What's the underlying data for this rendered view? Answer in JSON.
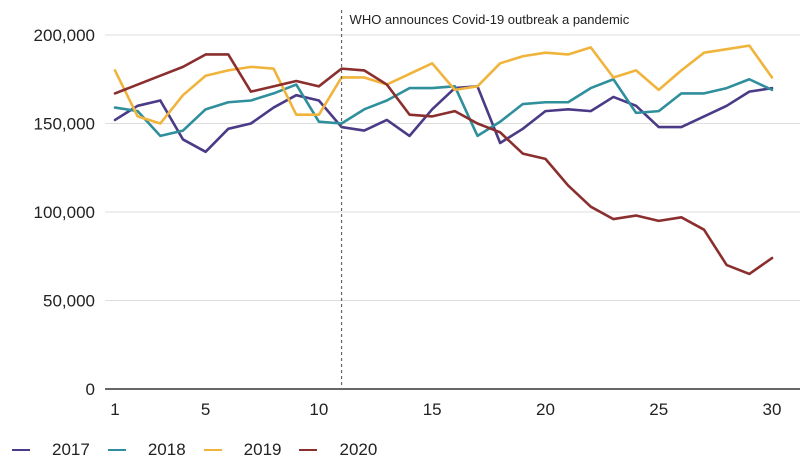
{
  "chart_data": {
    "type": "line",
    "title": "",
    "xlabel": "",
    "ylabel": "",
    "xlim": [
      1,
      30
    ],
    "ylim": [
      0,
      200000
    ],
    "x_ticks": [
      1,
      5,
      10,
      15,
      20,
      25,
      30
    ],
    "y_ticks": [
      0,
      50000,
      100000,
      150000,
      200000
    ],
    "y_tick_labels": [
      "0",
      "50,000",
      "100,000",
      "150,000",
      "200,000"
    ],
    "x": [
      1,
      2,
      3,
      4,
      5,
      6,
      7,
      8,
      9,
      10,
      11,
      12,
      13,
      14,
      15,
      16,
      17,
      18,
      19,
      20,
      21,
      22,
      23,
      24,
      25,
      26,
      27,
      28,
      29,
      30
    ],
    "series": [
      {
        "name": "2017",
        "color": "#4b3a86",
        "values": [
          152000,
          160000,
          163000,
          141000,
          134000,
          147000,
          150000,
          159000,
          166000,
          163000,
          148000,
          146000,
          152000,
          143000,
          158000,
          170000,
          171000,
          139000,
          147000,
          157000,
          158000,
          157000,
          165000,
          160000,
          148000,
          148000,
          154000,
          160000,
          168000,
          170000
        ]
      },
      {
        "name": "2018",
        "color": "#2f8f9d",
        "values": [
          159000,
          157000,
          143000,
          146000,
          158000,
          162000,
          163000,
          167000,
          172000,
          151000,
          150000,
          158000,
          163000,
          170000,
          170000,
          171000,
          143000,
          151000,
          161000,
          162000,
          162000,
          170000,
          175000,
          156000,
          157000,
          167000,
          167000,
          170000,
          175000,
          169000
        ]
      },
      {
        "name": "2019",
        "color": "#f0b43c",
        "values": [
          180000,
          154000,
          150000,
          166000,
          177000,
          180000,
          182000,
          181000,
          155000,
          155000,
          176000,
          176000,
          172000,
          178000,
          184000,
          169000,
          171000,
          184000,
          188000,
          190000,
          189000,
          193000,
          176000,
          180000,
          169000,
          180000,
          190000,
          192000,
          194000,
          176000
        ]
      },
      {
        "name": "2020",
        "color": "#8b2e2e",
        "values": [
          167000,
          172000,
          177000,
          182000,
          189000,
          189000,
          168000,
          171000,
          174000,
          171000,
          181000,
          180000,
          172000,
          155000,
          154000,
          157000,
          150000,
          145000,
          133000,
          130000,
          115000,
          103000,
          96000,
          98000,
          95000,
          97000,
          90000,
          70000,
          65000,
          74000
        ]
      }
    ],
    "annotations": [
      {
        "x": 11,
        "text": "WHO announces Covid-19 outbreak a pandemic",
        "style": "dashed-vertical-line"
      }
    ],
    "grid": "horizontal",
    "legend": "bottom-left"
  }
}
